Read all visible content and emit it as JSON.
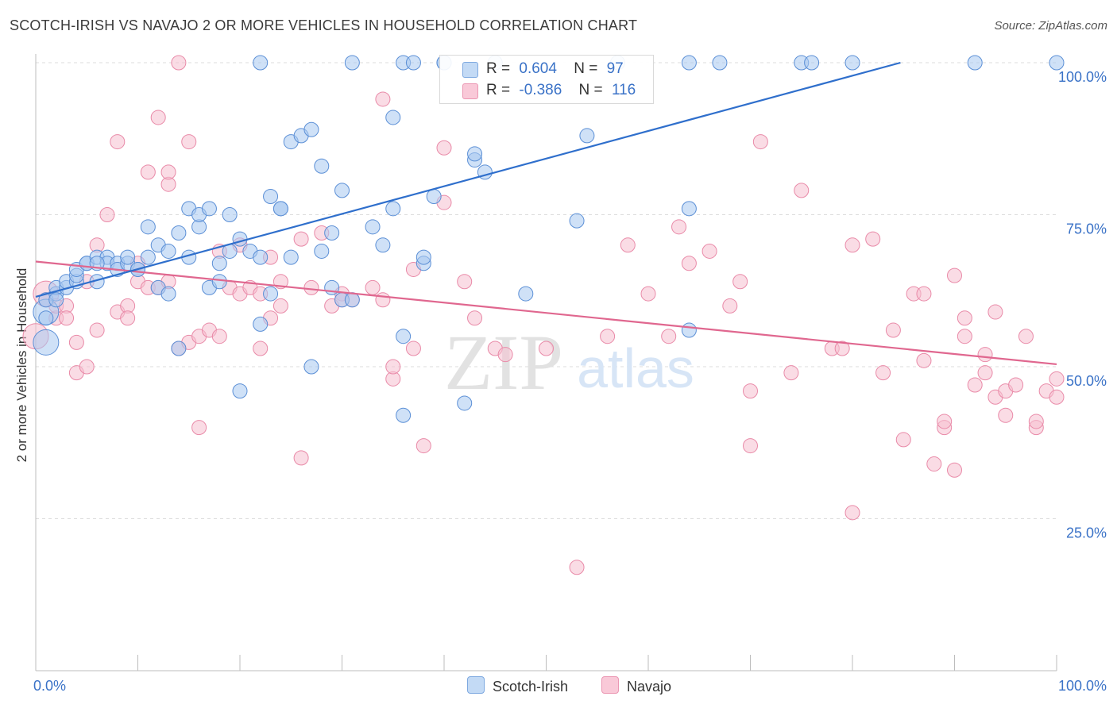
{
  "title": "SCOTCH-IRISH VS NAVAJO 2 OR MORE VEHICLES IN HOUSEHOLD CORRELATION CHART",
  "source": "Source: ZipAtlas.com",
  "legend": {
    "r_label": "R =",
    "n_label": "N =",
    "series1": {
      "name": "Scotch-Irish",
      "r": "0.604",
      "n": "97"
    },
    "series2": {
      "name": "Navajo",
      "r": "-0.386",
      "n": "116"
    }
  },
  "colors": {
    "blue_fill": "#a8c8f0",
    "blue_stroke": "#5b8fd6",
    "blue_line": "#2f6fcc",
    "pink_fill": "#f6bfd0",
    "pink_stroke": "#e98aa8",
    "pink_line": "#e0678f",
    "axis_text_blue": "#3a72c7"
  },
  "watermark": {
    "zip": "ZIP",
    "atlas": "atlas"
  },
  "chart_data": {
    "type": "scatter",
    "xlabel": "",
    "ylabel": "2 or more Vehicles in Household",
    "xlim": [
      0,
      100
    ],
    "ylim": [
      0,
      100
    ],
    "x_tick_labels": [
      "0.0%",
      "100.0%"
    ],
    "y_tick_labels": [
      "25.0%",
      "50.0%",
      "75.0%",
      "100.0%"
    ],
    "y_ticks": [
      25,
      50,
      75,
      100
    ],
    "grid": "horizontal dashed",
    "legend_position": "top-center",
    "series": [
      {
        "name": "Scotch-Irish",
        "trend": {
          "x0": 0,
          "y0": 61.5,
          "x1": 84.7,
          "y1": 100
        },
        "points": [
          [
            1,
            54
          ],
          [
            1,
            59
          ],
          [
            1,
            61
          ],
          [
            2,
            62
          ],
          [
            2,
            63
          ],
          [
            3,
            63
          ],
          [
            3,
            64
          ],
          [
            4,
            64
          ],
          [
            4,
            65
          ],
          [
            4,
            66
          ],
          [
            5,
            67
          ],
          [
            5,
            67
          ],
          [
            6,
            68
          ],
          [
            6,
            64
          ],
          [
            7,
            68
          ],
          [
            7,
            67
          ],
          [
            8,
            67
          ],
          [
            8,
            66
          ],
          [
            9,
            67
          ],
          [
            9,
            68
          ],
          [
            10,
            66
          ],
          [
            10,
            66
          ],
          [
            11,
            73
          ],
          [
            11,
            68
          ],
          [
            12,
            70
          ],
          [
            12,
            63
          ],
          [
            13,
            69
          ],
          [
            13,
            62
          ],
          [
            14,
            53
          ],
          [
            14,
            72
          ],
          [
            15,
            68
          ],
          [
            15,
            76
          ],
          [
            16,
            73
          ],
          [
            16,
            75
          ],
          [
            17,
            76
          ],
          [
            17,
            63
          ],
          [
            18,
            67
          ],
          [
            18,
            64
          ],
          [
            19,
            69
          ],
          [
            19,
            75
          ],
          [
            20,
            46
          ],
          [
            20,
            71
          ],
          [
            21,
            69
          ],
          [
            22,
            57
          ],
          [
            22,
            68
          ],
          [
            23,
            78
          ],
          [
            23,
            62
          ],
          [
            24,
            76
          ],
          [
            24,
            76
          ],
          [
            25,
            68
          ],
          [
            25,
            87
          ],
          [
            26,
            88
          ],
          [
            27,
            89
          ],
          [
            27,
            50
          ],
          [
            28,
            69
          ],
          [
            28,
            83
          ],
          [
            29,
            63
          ],
          [
            29,
            72
          ],
          [
            30,
            79
          ],
          [
            30,
            61
          ],
          [
            31,
            61
          ],
          [
            33,
            73
          ],
          [
            34,
            70
          ],
          [
            35,
            76
          ],
          [
            35,
            91
          ],
          [
            36,
            55
          ],
          [
            36,
            42
          ],
          [
            38,
            67
          ],
          [
            38,
            68
          ],
          [
            39,
            78
          ],
          [
            40,
            100
          ],
          [
            42,
            44
          ],
          [
            43,
            84
          ],
          [
            43,
            85
          ],
          [
            44,
            82
          ],
          [
            48,
            62
          ],
          [
            53,
            74
          ],
          [
            54,
            88
          ],
          [
            64,
            56
          ],
          [
            64,
            76
          ],
          [
            22,
            100
          ],
          [
            31,
            100
          ],
          [
            36,
            100
          ],
          [
            37,
            100
          ],
          [
            40,
            100
          ],
          [
            45,
            100
          ],
          [
            57,
            100
          ],
          [
            64,
            100
          ],
          [
            67,
            100
          ],
          [
            75,
            100
          ],
          [
            76,
            100
          ],
          [
            80,
            100
          ],
          [
            92,
            100
          ],
          [
            100,
            100
          ],
          [
            1,
            58
          ],
          [
            2,
            61
          ],
          [
            6,
            67
          ]
        ]
      },
      {
        "name": "Navajo",
        "trend": {
          "x0": 0,
          "y0": 67.3,
          "x1": 100,
          "y1": 50.4
        },
        "points": [
          [
            0,
            55
          ],
          [
            1,
            62
          ],
          [
            1,
            61
          ],
          [
            2,
            58
          ],
          [
            2,
            60
          ],
          [
            3,
            60
          ],
          [
            3,
            58
          ],
          [
            4,
            54
          ],
          [
            4,
            49
          ],
          [
            5,
            64
          ],
          [
            5,
            50
          ],
          [
            6,
            70
          ],
          [
            6,
            56
          ],
          [
            7,
            75
          ],
          [
            8,
            87
          ],
          [
            8,
            59
          ],
          [
            9,
            60
          ],
          [
            9,
            58
          ],
          [
            10,
            64
          ],
          [
            10,
            67
          ],
          [
            11,
            82
          ],
          [
            11,
            63
          ],
          [
            12,
            63
          ],
          [
            12,
            91
          ],
          [
            13,
            64
          ],
          [
            13,
            80
          ],
          [
            13,
            82
          ],
          [
            14,
            100
          ],
          [
            14,
            53
          ],
          [
            15,
            87
          ],
          [
            15,
            54
          ],
          [
            16,
            40
          ],
          [
            16,
            55
          ],
          [
            17,
            56
          ],
          [
            18,
            69
          ],
          [
            18,
            55
          ],
          [
            19,
            63
          ],
          [
            20,
            70
          ],
          [
            20,
            62
          ],
          [
            21,
            63
          ],
          [
            22,
            62
          ],
          [
            22,
            53
          ],
          [
            23,
            68
          ],
          [
            23,
            58
          ],
          [
            24,
            64
          ],
          [
            24,
            60
          ],
          [
            26,
            35
          ],
          [
            26,
            71
          ],
          [
            27,
            63
          ],
          [
            28,
            72
          ],
          [
            29,
            60
          ],
          [
            30,
            62
          ],
          [
            30,
            61
          ],
          [
            31,
            61
          ],
          [
            33,
            63
          ],
          [
            34,
            61
          ],
          [
            34,
            94
          ],
          [
            35,
            48
          ],
          [
            35,
            50
          ],
          [
            37,
            66
          ],
          [
            37,
            53
          ],
          [
            38,
            37
          ],
          [
            40,
            86
          ],
          [
            40,
            77
          ],
          [
            42,
            64
          ],
          [
            43,
            58
          ],
          [
            45,
            53
          ],
          [
            46,
            52
          ],
          [
            50,
            53
          ],
          [
            53,
            17
          ],
          [
            56,
            55
          ],
          [
            58,
            70
          ],
          [
            60,
            62
          ],
          [
            62,
            55
          ],
          [
            63,
            73
          ],
          [
            64,
            67
          ],
          [
            66,
            69
          ],
          [
            68,
            60
          ],
          [
            69,
            64
          ],
          [
            70,
            37
          ],
          [
            70,
            46
          ],
          [
            71,
            87
          ],
          [
            74,
            49
          ],
          [
            75,
            79
          ],
          [
            78,
            53
          ],
          [
            79,
            53
          ],
          [
            80,
            26
          ],
          [
            80,
            70
          ],
          [
            82,
            71
          ],
          [
            83,
            49
          ],
          [
            84,
            56
          ],
          [
            85,
            38
          ],
          [
            86,
            62
          ],
          [
            87,
            62
          ],
          [
            87,
            51
          ],
          [
            88,
            34
          ],
          [
            89,
            40
          ],
          [
            89,
            41
          ],
          [
            90,
            33
          ],
          [
            90,
            65
          ],
          [
            91,
            58
          ],
          [
            91,
            55
          ],
          [
            92,
            47
          ],
          [
            93,
            49
          ],
          [
            93,
            52
          ],
          [
            94,
            45
          ],
          [
            94,
            59
          ],
          [
            95,
            42
          ],
          [
            95,
            46
          ],
          [
            96,
            47
          ],
          [
            97,
            55
          ],
          [
            98,
            40
          ],
          [
            98,
            41
          ],
          [
            99,
            46
          ],
          [
            100,
            48
          ],
          [
            100,
            45
          ]
        ]
      }
    ]
  }
}
